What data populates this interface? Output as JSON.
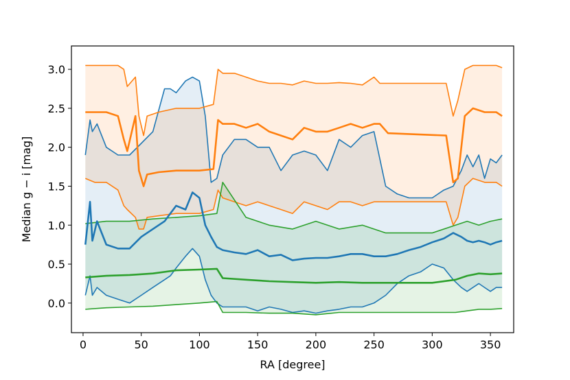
{
  "chart_data": {
    "type": "line",
    "xlabel": "RA [degree]",
    "ylabel": "Median g − i [mag]",
    "xlim": [
      -10,
      370
    ],
    "ylim": [
      -0.38,
      3.3
    ],
    "xticks": [
      0,
      50,
      100,
      150,
      200,
      250,
      300,
      350
    ],
    "yticks": [
      0.0,
      0.5,
      1.0,
      1.5,
      2.0,
      2.5,
      3.0
    ],
    "xtick_labels": [
      "0",
      "50",
      "100",
      "150",
      "200",
      "250",
      "300",
      "350"
    ],
    "ytick_labels": [
      "0.0",
      "0.5",
      "1.0",
      "1.5",
      "2.0",
      "2.5",
      "3.0"
    ],
    "grid": false,
    "series": [
      {
        "color": "#1f77b4",
        "x": [
          2,
          6,
          8,
          12,
          20,
          30,
          40,
          50,
          60,
          70,
          75,
          80,
          88,
          94,
          100,
          105,
          110,
          115,
          120,
          130,
          140,
          150,
          160,
          170,
          180,
          190,
          200,
          210,
          220,
          230,
          240,
          250,
          260,
          270,
          280,
          290,
          300,
          310,
          318,
          325,
          330,
          335,
          340,
          345,
          350,
          355,
          360
        ],
        "median": [
          0.75,
          1.3,
          0.8,
          1.05,
          0.75,
          0.7,
          0.7,
          0.85,
          0.95,
          1.05,
          1.15,
          1.25,
          1.2,
          1.42,
          1.35,
          1.0,
          0.85,
          0.72,
          0.68,
          0.65,
          0.63,
          0.68,
          0.6,
          0.62,
          0.55,
          0.57,
          0.58,
          0.58,
          0.6,
          0.63,
          0.63,
          0.6,
          0.6,
          0.63,
          0.68,
          0.72,
          0.78,
          0.83,
          0.9,
          0.85,
          0.8,
          0.78,
          0.8,
          0.78,
          0.75,
          0.78,
          0.8
        ],
        "upper": [
          1.9,
          2.35,
          2.2,
          2.3,
          2.0,
          1.9,
          1.9,
          2.05,
          2.2,
          2.75,
          2.75,
          2.7,
          2.85,
          2.9,
          2.85,
          2.4,
          1.55,
          1.6,
          1.9,
          2.1,
          2.1,
          2.0,
          2.0,
          1.7,
          1.9,
          1.95,
          1.9,
          1.7,
          2.1,
          2.0,
          2.15,
          2.2,
          1.5,
          1.4,
          1.35,
          1.35,
          1.35,
          1.45,
          1.5,
          1.7,
          1.9,
          1.75,
          1.9,
          1.6,
          1.85,
          1.8,
          1.9
        ],
        "lower": [
          0.1,
          0.35,
          0.1,
          0.2,
          0.1,
          0.05,
          0.0,
          0.1,
          0.2,
          0.3,
          0.35,
          0.45,
          0.6,
          0.7,
          0.6,
          0.3,
          0.1,
          0.0,
          -0.05,
          -0.05,
          -0.05,
          -0.1,
          -0.05,
          -0.08,
          -0.12,
          -0.1,
          -0.13,
          -0.1,
          -0.08,
          -0.05,
          -0.05,
          0.0,
          0.1,
          0.25,
          0.35,
          0.4,
          0.5,
          0.45,
          0.3,
          0.2,
          0.15,
          0.2,
          0.25,
          0.2,
          0.15,
          0.2,
          0.2
        ]
      },
      {
        "color": "#ff7f0e",
        "x": [
          2,
          10,
          20,
          30,
          35,
          38,
          45,
          48,
          52,
          55,
          65,
          80,
          100,
          112,
          116,
          120,
          130,
          140,
          150,
          160,
          170,
          180,
          190,
          200,
          210,
          220,
          230,
          240,
          250,
          255,
          262,
          312,
          318,
          322,
          328,
          335,
          345,
          355,
          360
        ],
        "median": [
          2.45,
          2.45,
          2.45,
          2.4,
          2.1,
          1.95,
          2.4,
          1.7,
          1.5,
          1.65,
          1.68,
          1.7,
          1.7,
          1.72,
          2.35,
          2.3,
          2.3,
          2.25,
          2.3,
          2.2,
          2.15,
          2.1,
          2.25,
          2.2,
          2.2,
          2.25,
          2.3,
          2.25,
          2.3,
          2.3,
          2.18,
          2.15,
          1.55,
          1.6,
          2.4,
          2.5,
          2.45,
          2.45,
          2.4
        ],
        "upper": [
          3.05,
          3.05,
          3.05,
          3.05,
          3.0,
          2.78,
          2.9,
          2.4,
          2.15,
          2.4,
          2.45,
          2.5,
          2.5,
          2.55,
          3.0,
          2.95,
          2.95,
          2.9,
          2.85,
          2.82,
          2.82,
          2.8,
          2.85,
          2.82,
          2.82,
          2.83,
          2.82,
          2.8,
          2.9,
          2.82,
          2.82,
          2.82,
          2.4,
          2.6,
          3.0,
          3.05,
          3.05,
          3.05,
          3.02
        ],
        "lower": [
          1.6,
          1.55,
          1.55,
          1.45,
          1.25,
          1.2,
          1.1,
          0.95,
          0.95,
          1.1,
          1.12,
          1.15,
          1.15,
          1.2,
          1.45,
          1.35,
          1.3,
          1.25,
          1.3,
          1.25,
          1.2,
          1.15,
          1.3,
          1.25,
          1.2,
          1.3,
          1.3,
          1.25,
          1.3,
          1.3,
          1.3,
          1.3,
          1.0,
          1.1,
          1.5,
          1.6,
          1.55,
          1.55,
          1.5
        ]
      },
      {
        "color": "#2ca02c",
        "x": [
          2,
          20,
          40,
          60,
          80,
          100,
          115,
          120,
          140,
          160,
          180,
          200,
          220,
          240,
          260,
          280,
          300,
          320,
          330,
          340,
          350,
          360
        ],
        "median": [
          0.33,
          0.35,
          0.36,
          0.38,
          0.42,
          0.43,
          0.44,
          0.32,
          0.3,
          0.28,
          0.27,
          0.26,
          0.27,
          0.26,
          0.26,
          0.26,
          0.26,
          0.3,
          0.35,
          0.38,
          0.37,
          0.38
        ],
        "upper": [
          1.02,
          1.05,
          1.05,
          1.08,
          1.1,
          1.12,
          1.15,
          1.55,
          1.1,
          1.0,
          0.95,
          1.05,
          0.95,
          1.0,
          0.9,
          0.9,
          0.9,
          1.0,
          1.05,
          1.0,
          1.05,
          1.08
        ],
        "lower": [
          -0.08,
          -0.06,
          -0.05,
          -0.04,
          -0.02,
          0.0,
          0.02,
          -0.12,
          -0.12,
          -0.13,
          -0.13,
          -0.15,
          -0.12,
          -0.12,
          -0.12,
          -0.12,
          -0.12,
          -0.12,
          -0.1,
          -0.08,
          -0.08,
          -0.07
        ]
      }
    ]
  }
}
